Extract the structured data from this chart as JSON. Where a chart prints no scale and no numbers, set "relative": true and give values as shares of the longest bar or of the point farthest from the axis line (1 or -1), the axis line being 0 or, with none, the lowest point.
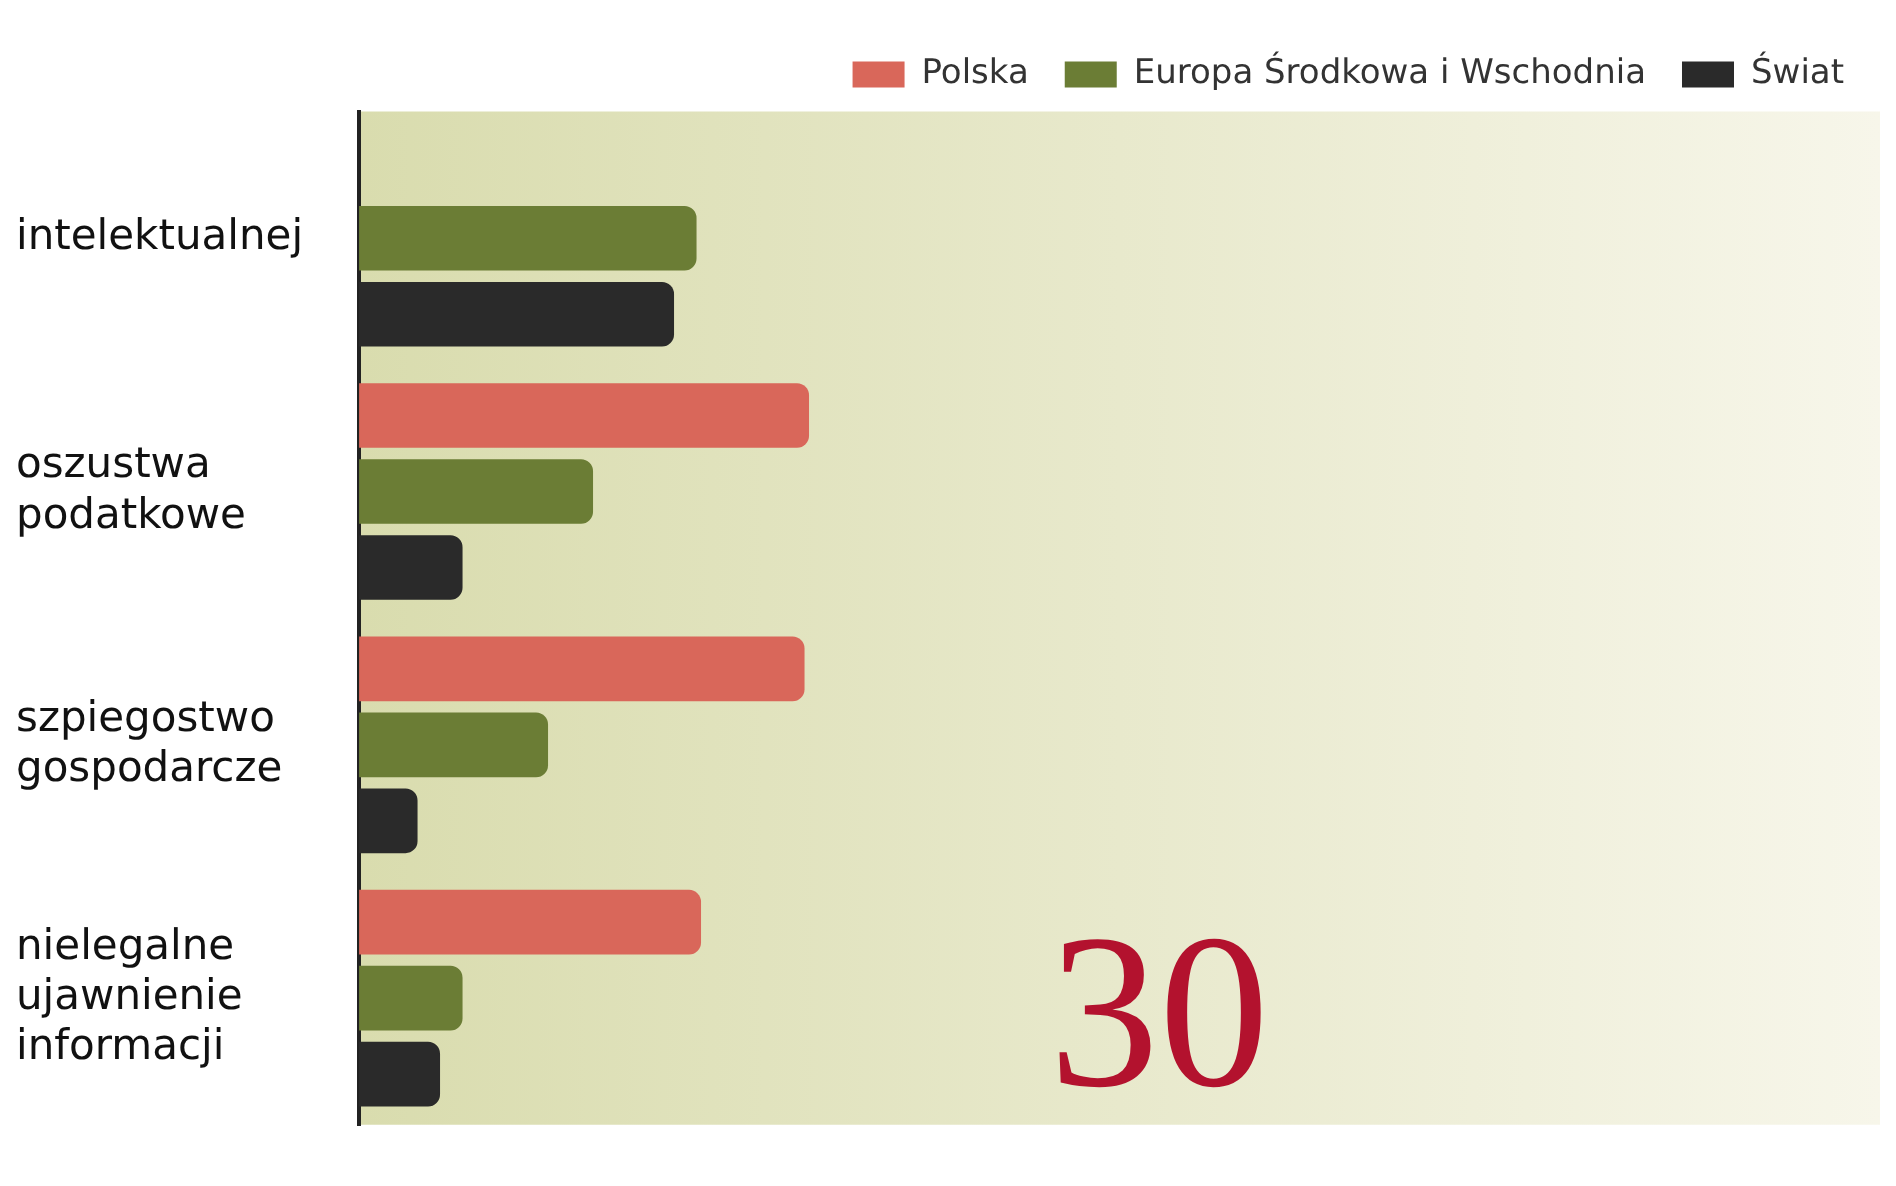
{
  "chart_data": {
    "type": "bar",
    "orientation": "horizontal",
    "relative": true,
    "categories": [
      "intelektualnej",
      "oszustwa podatkowe",
      "szpiegostwo gospodarcze",
      "nielegalne ujawnienie informacji"
    ],
    "series": [
      {
        "name": "Polska",
        "color": "#d9675a",
        "values": [
          null,
          1,
          0.99,
          0.76
        ]
      },
      {
        "name": "Europa Środkowa i Wschodnia",
        "color": "#6b7d35",
        "values": [
          0.75,
          0.52,
          0.42,
          0.23
        ]
      },
      {
        "name": "Świat",
        "color": "#2a2a2a",
        "values": [
          0.7,
          0.23,
          0.13,
          0.18
        ]
      }
    ],
    "legend": "top right",
    "annotations": [
      "30"
    ]
  }
}
